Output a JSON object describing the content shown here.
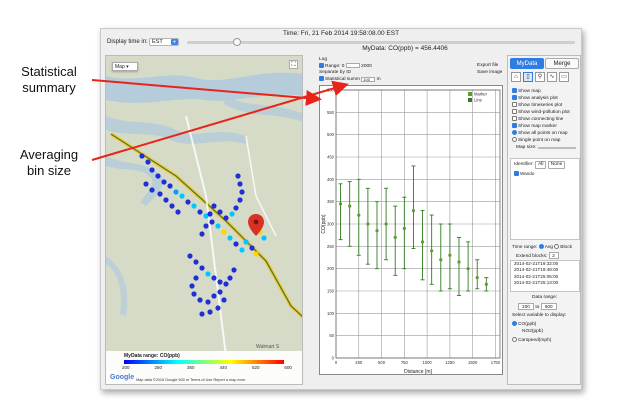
{
  "annotations": {
    "statistical_summary": "Statistical summary",
    "averaging_bin_size": "Averaging bin size"
  },
  "timebar": {
    "title": "Time: Fri, 21 Feb 2014 19:58:08.00 EST",
    "tz_label": "Display time in:",
    "tz_value": "EST",
    "slider_position": 0.12
  },
  "map": {
    "type_label": "Map",
    "legend_title": "MyData range: CO(ppb)",
    "legend_ticks": [
      "200",
      "280",
      "360",
      "440",
      "520",
      "600"
    ],
    "google": "Google",
    "attribution": "Map data ©2016 Google   500 m         Terms of Use   Report a map error",
    "place_label": "Walmart S",
    "colors": {
      "low": "#1f2fd6",
      "mid": "#00c8ff",
      "high": "#ffd500",
      "road": "#f2c94c",
      "route": "#4d7c1f"
    }
  },
  "plot": {
    "title": "MyData: CO(ppb) = 456.4406",
    "log_label": "Log",
    "range_label": "Range: 0",
    "range_max": "2000",
    "separate_label": "Separate by ID",
    "stat_label": "Statistical summ",
    "bin_value": "100",
    "bin_unit": "m",
    "export_link": "Export file",
    "save_link": "Save image",
    "legend_marker": "Marker",
    "legend_line": "Line",
    "colors": {
      "marker": "#5b9e2e",
      "line": "#2e7d1f"
    }
  },
  "chart_data": {
    "type": "scatter",
    "xlabel": "Distance [m]",
    "ylabel": "CO(ppb)",
    "xlim": [
      0,
      1800
    ],
    "ylim": [
      0,
      600
    ],
    "xticks": [
      0,
      250,
      500,
      750,
      1000,
      1250,
      1500,
      1750
    ],
    "yticks": [
      0,
      50,
      100,
      150,
      200,
      250,
      300,
      350,
      400,
      450,
      500,
      550,
      600
    ],
    "series": [
      {
        "name": "Marker",
        "x": [
          50,
          150,
          250,
          350,
          450,
          550,
          650,
          750,
          850,
          950,
          1050,
          1150,
          1250,
          1350,
          1450,
          1550,
          1650
        ],
        "mean": [
          345,
          340,
          320,
          300,
          285,
          300,
          270,
          290,
          330,
          260,
          240,
          220,
          230,
          215,
          200,
          180,
          165
        ],
        "low": [
          265,
          250,
          230,
          210,
          200,
          220,
          185,
          200,
          245,
          175,
          165,
          150,
          155,
          140,
          150,
          155,
          150
        ],
        "high": [
          390,
          395,
          400,
          380,
          350,
          380,
          340,
          360,
          430,
          330,
          320,
          300,
          300,
          270,
          260,
          220,
          180
        ]
      }
    ]
  },
  "side": {
    "tabs": [
      "MyData",
      "Merge"
    ],
    "options": [
      "Show map",
      "Show analysis plot",
      "Show timeseries plot",
      "Show wind-pollution plot",
      "Show connecting line",
      "Show map marker"
    ],
    "options_checked": [
      true,
      true,
      false,
      false,
      false,
      true
    ],
    "radio_all": "Show all points on map",
    "radio_single": "Single point on map",
    "map_size": "Map size:",
    "identifier_label": "Identifier:",
    "btn_all": "All",
    "btn_none": "None",
    "id_item": "Wando",
    "time_range_label": "Time range:",
    "avg_label": "Avg",
    "block_label": "Block",
    "extend_label": "Extend blocks:",
    "extend_value": "2",
    "times": [
      "2014-02-21T19:32:00",
      "2014-02-21T19:48:00",
      "2014-02-21T25:05:00",
      "2014-02-21T25:13:00"
    ],
    "data_range_label": "Data range:",
    "data_min": "200",
    "data_to": "to",
    "data_max": "600",
    "variable_label": "Select variable to display:",
    "variables": [
      "CO(ppb)",
      "NO2(ppb)",
      "Carspeed(mph)"
    ]
  }
}
